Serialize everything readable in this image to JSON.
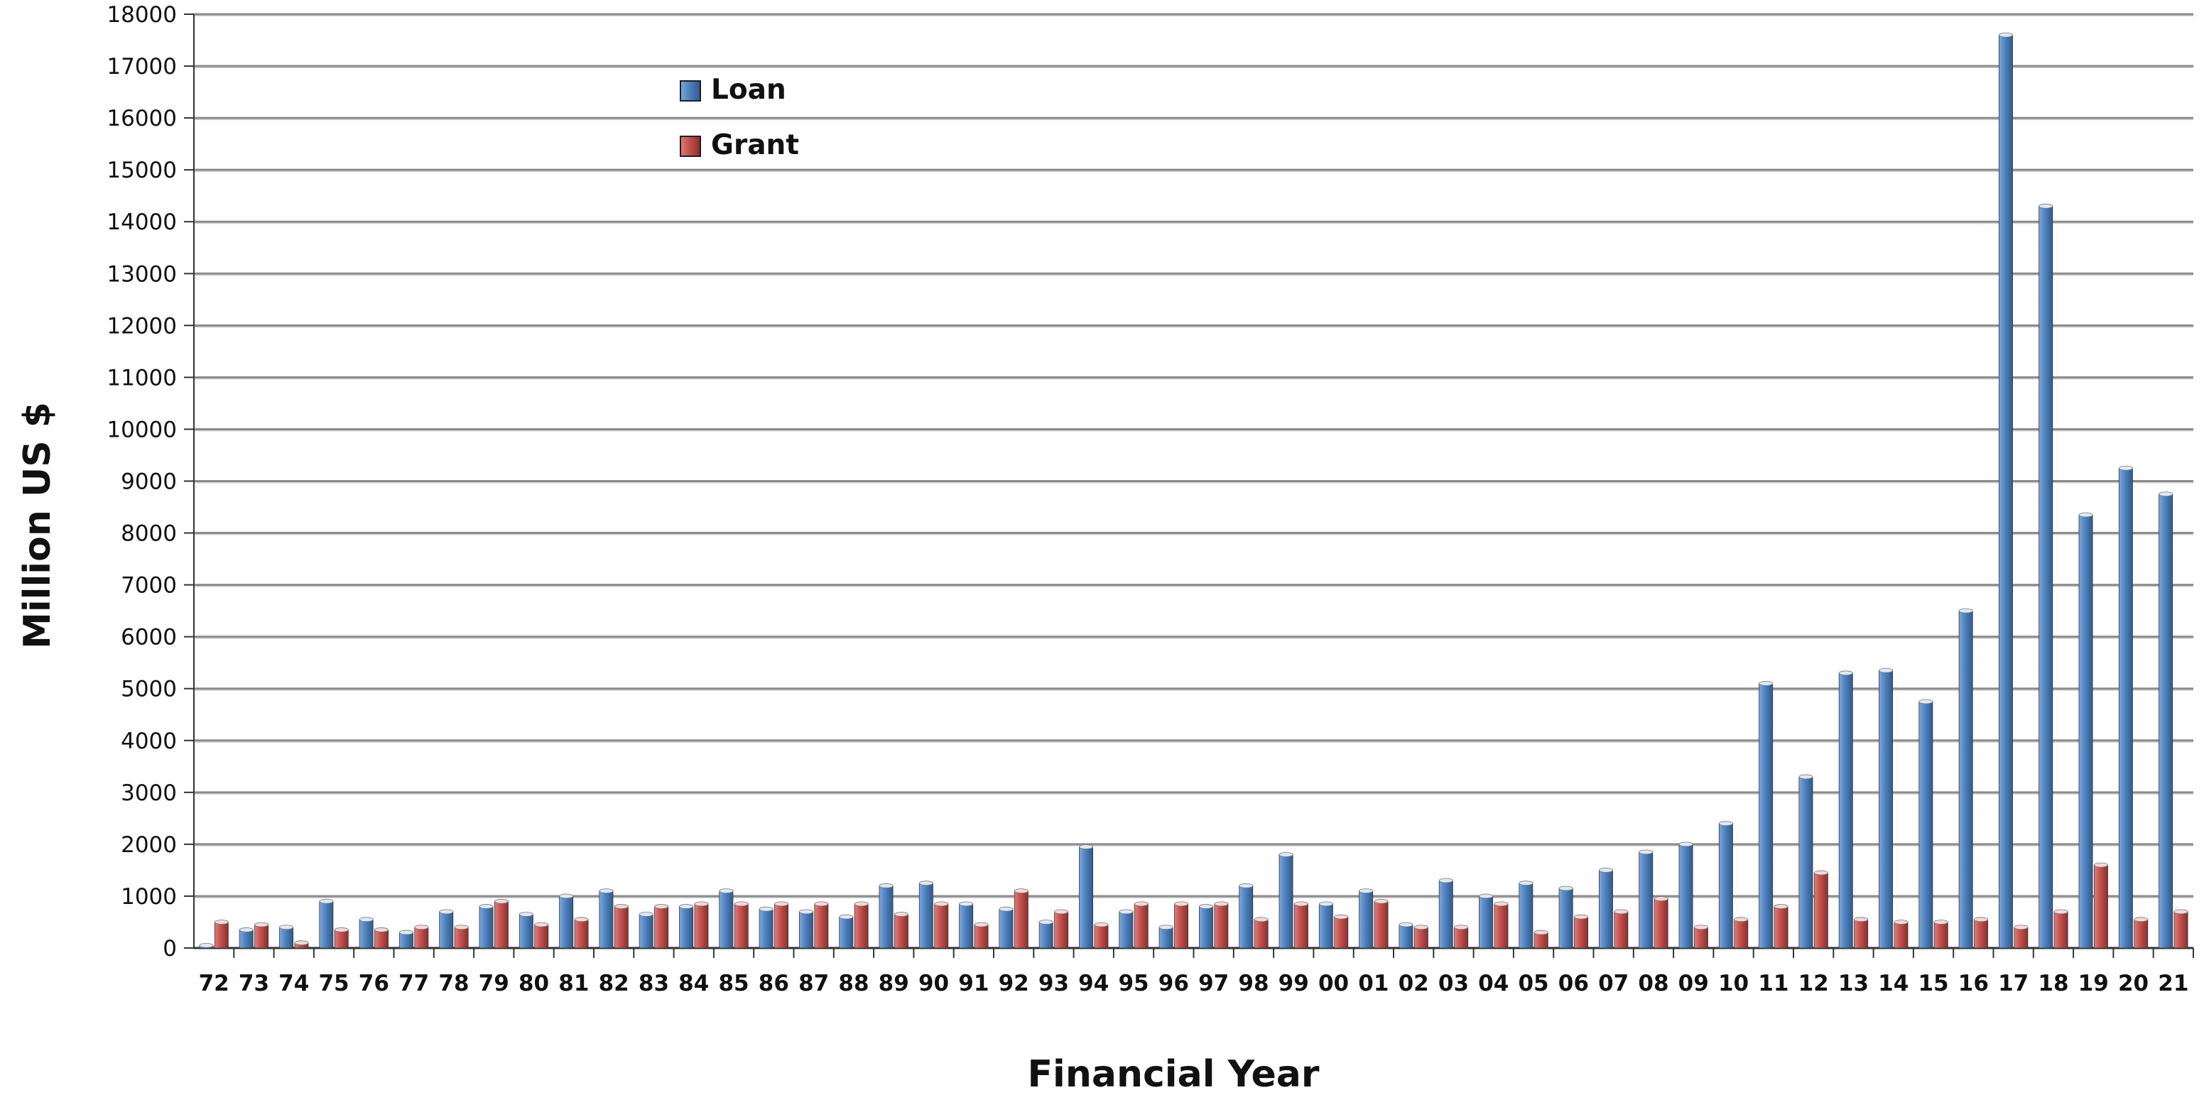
{
  "chart_data": {
    "type": "bar",
    "xlabel": "Financial Year",
    "ylabel": "Million US $",
    "ylim": [
      0,
      18000
    ],
    "ytick_step": 1000,
    "grid": true,
    "legend_position": "top-left",
    "categories": [
      "72",
      "73",
      "74",
      "75",
      "76",
      "77",
      "78",
      "79",
      "80",
      "81",
      "82",
      "83",
      "84",
      "85",
      "86",
      "87",
      "88",
      "89",
      "90",
      "91",
      "92",
      "93",
      "94",
      "95",
      "96",
      "97",
      "98",
      "99",
      "00",
      "01",
      "02",
      "03",
      "04",
      "05",
      "06",
      "07",
      "08",
      "09",
      "10",
      "11",
      "12",
      "13",
      "14",
      "15",
      "16",
      "17",
      "18",
      "19",
      "20",
      "21"
    ],
    "series": [
      {
        "name": "Loan",
        "color": "#4F81BD",
        "values": [
          50,
          350,
          400,
          900,
          550,
          300,
          700,
          800,
          650,
          1000,
          1100,
          650,
          800,
          1100,
          750,
          700,
          600,
          1200,
          1250,
          850,
          750,
          500,
          1950,
          700,
          400,
          800,
          1200,
          1800,
          850,
          1100,
          450,
          1300,
          1000,
          1250,
          1150,
          1500,
          1850,
          2000,
          2400,
          5100,
          3300,
          5300,
          5350,
          4750,
          6500,
          17600,
          14300,
          8350,
          9250,
          8750
        ]
      },
      {
        "name": "Grant",
        "color": "#C0504D",
        "values": [
          500,
          450,
          100,
          350,
          350,
          400,
          400,
          900,
          450,
          550,
          800,
          800,
          850,
          850,
          850,
          850,
          850,
          650,
          850,
          450,
          1100,
          700,
          450,
          850,
          850,
          850,
          550,
          850,
          600,
          900,
          400,
          400,
          850,
          300,
          600,
          700,
          950,
          400,
          550,
          800,
          1450,
          550,
          500,
          500,
          550,
          400,
          700,
          1600,
          550,
          700
        ]
      }
    ]
  }
}
